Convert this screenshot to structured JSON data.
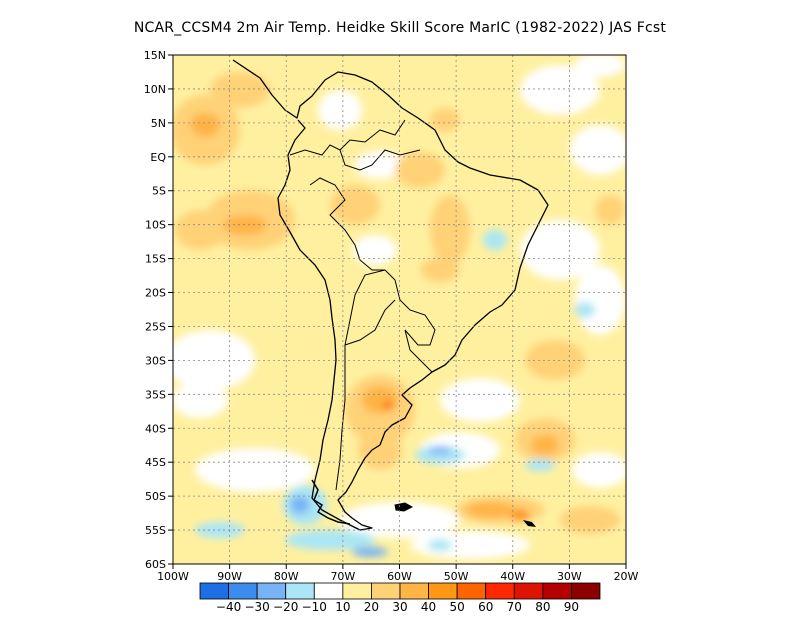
{
  "title": "NCAR_CCSM4  2m Air Temp. Heidke Skill Score MarIC (1982-2022) JAS Fcst",
  "lat_labels": [
    "15N",
    "10N",
    "5N",
    "EQ",
    "5S",
    "10S",
    "15S",
    "20S",
    "25S",
    "30S",
    "35S",
    "40S",
    "45S",
    "50S",
    "55S",
    "60S"
  ],
  "lat_values": [
    15,
    10,
    5,
    0,
    -5,
    -10,
    -15,
    -20,
    -25,
    -30,
    -35,
    -40,
    -45,
    -50,
    -55,
    -60
  ],
  "lon_labels": [
    "100W",
    "90W",
    "80W",
    "70W",
    "60W",
    "50W",
    "40W",
    "30W",
    "20W"
  ],
  "lon_values": [
    -100,
    -90,
    -80,
    -70,
    -60,
    -50,
    -40,
    -30,
    -20
  ],
  "colorbar": {
    "labels": [
      "-40",
      "-30",
      "-20",
      "-10",
      "10",
      "20",
      "30",
      "40",
      "50",
      "60",
      "70",
      "80",
      "90"
    ],
    "colors": [
      "#1e6ee6",
      "#3c8cf0",
      "#78b4f5",
      "#aae6f5",
      "#ffffff",
      "#fff0a0",
      "#ffd278",
      "#ffb446",
      "#ff9614",
      "#ff6400",
      "#ff2800",
      "#dc1400",
      "#b40000",
      "#8c0000"
    ]
  },
  "grid": true
}
